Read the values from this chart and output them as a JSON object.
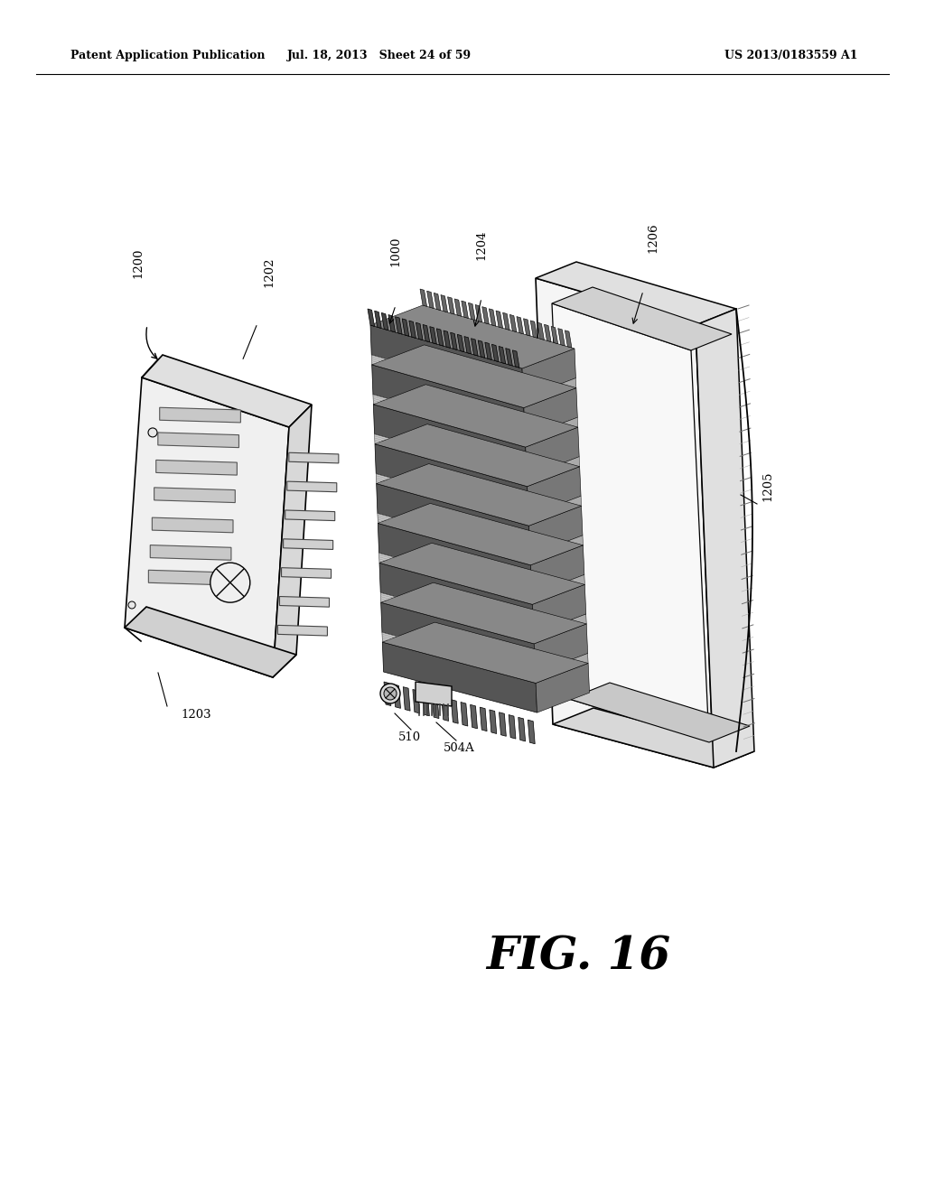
{
  "background_color": "#ffffff",
  "header_left": "Patent Application Publication",
  "header_center": "Jul. 18, 2013   Sheet 24 of 59",
  "header_right": "US 2013/0183559 A1",
  "figure_label": "FIG. 16"
}
